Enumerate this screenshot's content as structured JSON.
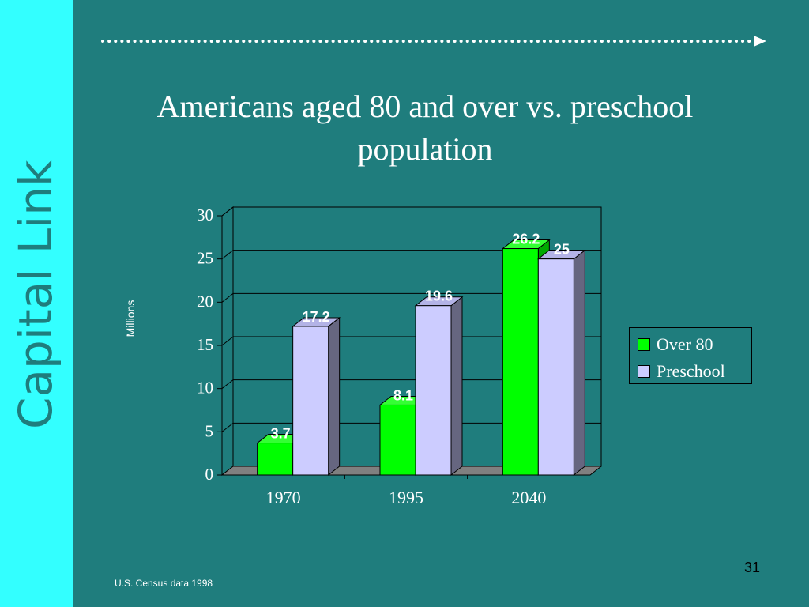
{
  "slide": {
    "brand": "Capital Link",
    "title": "Americans aged 80 and over vs. preschool population",
    "source": "U.S. Census data 1998",
    "page_number": "31",
    "colors": {
      "background": "#1f7d7d",
      "sidebar": "#33ffff",
      "arrow_icon": "arrow-right-icon"
    }
  },
  "chart_data": {
    "type": "bar",
    "title": "Americans aged 80 and over vs. preschool population",
    "ylabel": "Millions",
    "xlabel": "",
    "categories": [
      "1970",
      "1995",
      "2040"
    ],
    "series": [
      {
        "name": "Over 80",
        "values": [
          3.7,
          8.1,
          26.2
        ],
        "labels": [
          "3.7",
          "8.1",
          "26.2"
        ],
        "color": "#00ff00"
      },
      {
        "name": "Preschool",
        "values": [
          17.2,
          19.6,
          25
        ],
        "labels": [
          "17.2",
          "19.6",
          "25"
        ],
        "color": "#ccccff"
      }
    ],
    "ylim": [
      0,
      30
    ],
    "yticks": [
      "0",
      "5",
      "10",
      "15",
      "20",
      "25",
      "30"
    ],
    "grid": true,
    "legend_position": "right",
    "three_d": true
  }
}
